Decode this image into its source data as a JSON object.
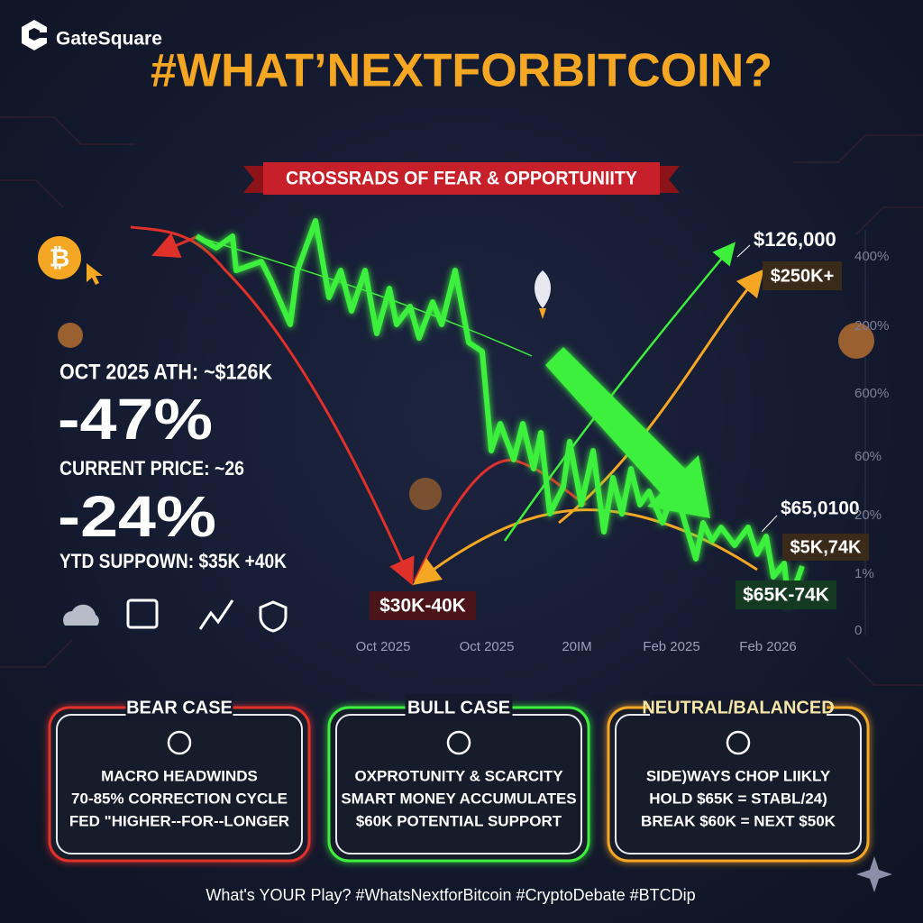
{
  "brand": "GateSquare",
  "title": "#WHAT’NEXTFORBITCOIN?",
  "banner": "CROSSRADS OF FEAR & OPPORTUNIITY",
  "stats": {
    "ath": "OCT 2025 ATH: ~$126K",
    "ath_change": "-47%",
    "current": "CURRENT PRICE: ~26",
    "current_change": "-24%",
    "ytd": "YTD SUPPOWN: $35K +40K"
  },
  "chart_labels": {
    "top": "$126,000",
    "bull_target": "$250K+",
    "mid": "$65,0100",
    "mid_range": "$5K,74K",
    "support": "$65K-74K",
    "bear_target": "$30K-40K"
  },
  "axis_right": [
    "400%",
    "200%",
    "600%",
    "60%",
    "20%",
    "1%",
    "0"
  ],
  "axis_bottom": [
    "Oct 2025",
    "Oct 2025",
    "20IM",
    "Feb 2025",
    "Feb 2026"
  ],
  "cards": [
    {
      "title": "BEAR CASE",
      "lines": [
        "MACRO HEADWINDS",
        "70-85% CORRECTION CYCLE",
        "FED \"HIGHER--FOR--LONGER"
      ]
    },
    {
      "title": "BULL CASE",
      "lines": [
        "OXPROTUNITY & SCARCITY",
        "SMART MONEY ACCUMULATES",
        "$60K POTENTIAL SUPPORT"
      ]
    },
    {
      "title": "NEUTRAL/BALANCED",
      "lines": [
        "SIDE)WAYS CHOP LIIKLY",
        "HOLD $65K = STABL/24)",
        "BREAK $60K = NEXT $50K"
      ]
    }
  ],
  "footer": "What's YOUR Play? #WhatsNextforBitcoin #CryptoDebate #BTCDip"
}
